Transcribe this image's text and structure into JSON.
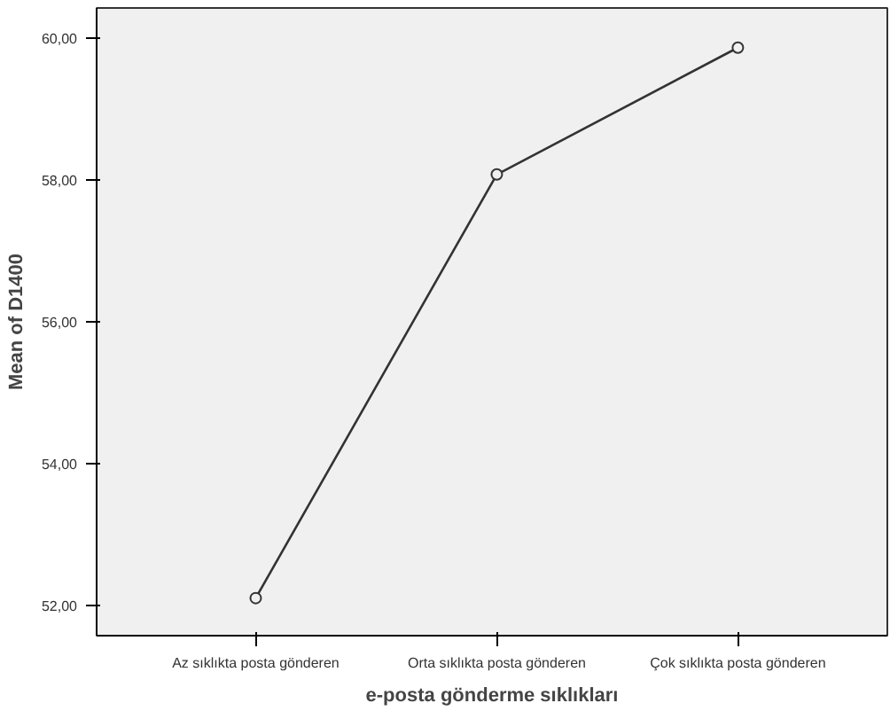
{
  "chart_data": {
    "type": "line",
    "xlabel": "e-posta gönderme sıklıkları",
    "ylabel": "Mean of D1400",
    "categories": [
      "Az sıklıkta posta gönderen",
      "Orta sıklıkta posta gönderen",
      "Çok sıklıkta posta gönderen"
    ],
    "series": [
      {
        "color": "#333333",
        "values": [
          52.1,
          58.08,
          59.87
        ]
      }
    ],
    "ylim": [
      51.57,
      60.43
    ],
    "yticks": [
      {
        "value": 52,
        "label": "52,00"
      },
      {
        "value": 54,
        "label": "54,00"
      },
      {
        "value": 56,
        "label": "56,00"
      },
      {
        "value": 58,
        "label": "58,00"
      },
      {
        "value": 60,
        "label": "60,00"
      }
    ],
    "marker": "circle",
    "line_style": "solid",
    "grid": false
  }
}
